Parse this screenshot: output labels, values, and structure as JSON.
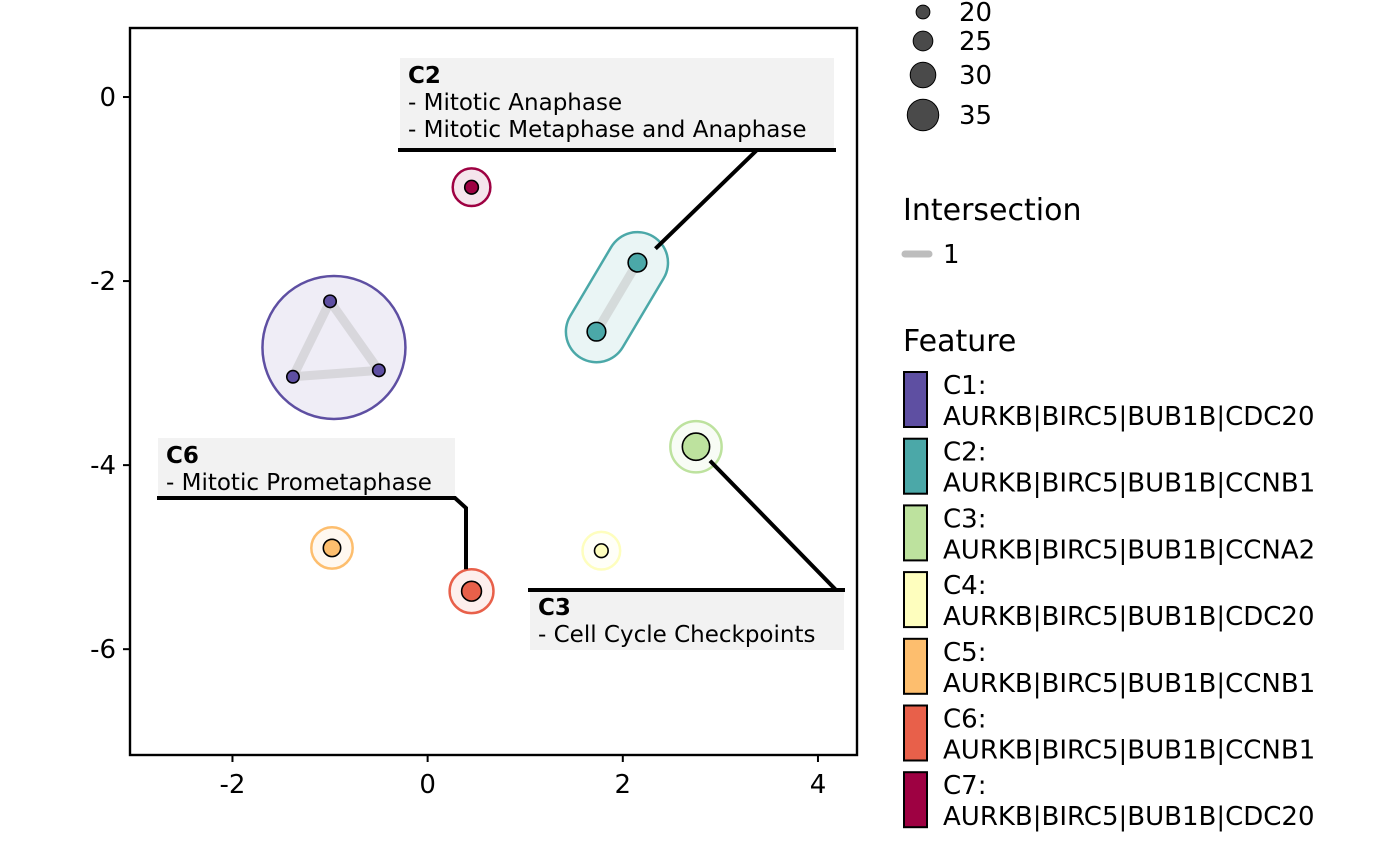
{
  "chart_data": {
    "type": "scatter",
    "xlim": [
      -3.05,
      4.4
    ],
    "ylim": [
      -7.15,
      0.75
    ],
    "x_ticks": [
      -2,
      0,
      2,
      4
    ],
    "y_ticks": [
      0,
      -2,
      -4,
      -6
    ],
    "x_tick_labels": [
      "-2",
      "0",
      "2",
      "4"
    ],
    "y_tick_labels": [
      "0",
      "-2",
      "-4",
      "-6"
    ],
    "grid": false,
    "nodes": [
      {
        "cluster": "C1",
        "x": -1.0,
        "y": -2.22,
        "size": 20
      },
      {
        "cluster": "C1",
        "x": -1.38,
        "y": -3.04,
        "size": 20
      },
      {
        "cluster": "C1",
        "x": -0.5,
        "y": -2.97,
        "size": 20
      },
      {
        "cluster": "C2",
        "x": 2.15,
        "y": -1.8,
        "size": 25
      },
      {
        "cluster": "C2",
        "x": 1.73,
        "y": -2.55,
        "size": 25
      },
      {
        "cluster": "C3",
        "x": 2.75,
        "y": -3.8,
        "size": 32
      },
      {
        "cluster": "C4",
        "x": 1.78,
        "y": -4.93,
        "size": 21
      },
      {
        "cluster": "C5",
        "x": -0.98,
        "y": -4.9,
        "size": 24
      },
      {
        "cluster": "C6",
        "x": 0.45,
        "y": -5.37,
        "size": 26
      },
      {
        "cluster": "C7",
        "x": 0.45,
        "y": -0.98,
        "size": 21
      }
    ],
    "edges": [
      {
        "cluster": "C1",
        "from": 0,
        "to": 1,
        "intersection": 1
      },
      {
        "cluster": "C1",
        "from": 0,
        "to": 2,
        "intersection": 1
      },
      {
        "cluster": "C1",
        "from": 1,
        "to": 2,
        "intersection": 1
      },
      {
        "cluster": "C2",
        "from": 3,
        "to": 4,
        "intersection": 1
      }
    ],
    "annotations": [
      {
        "cluster": "C2",
        "title": "C2",
        "lines": [
          "- Mitotic Anaphase",
          "- Mitotic Metaphase and Anaphase"
        ]
      },
      {
        "cluster": "C6",
        "title": "C6",
        "lines": [
          "- Mitotic Prometaphase"
        ]
      },
      {
        "cluster": "C3",
        "title": "C3",
        "lines": [
          "- Cell Cycle Checkpoints"
        ]
      }
    ],
    "legend_size": {
      "values": [
        20,
        25,
        30,
        35
      ],
      "labels": [
        "20",
        "25",
        "30",
        "35"
      ]
    },
    "legend_intersection": {
      "title": "Intersection",
      "labels": [
        "1"
      ]
    },
    "legend_feature": {
      "title": "Feature",
      "items": [
        {
          "key": "C1:",
          "genes": "AURKB|BIRC5|BUB1B|CDC20",
          "color": "#5E4FA2"
        },
        {
          "key": "C2:",
          "genes": "AURKB|BIRC5|BUB1B|CCNB1",
          "color": "#4BA8A8"
        },
        {
          "key": "C3:",
          "genes": "AURKB|BIRC5|BUB1B|CCNA2",
          "color": "#BDE29E"
        },
        {
          "key": "C4:",
          "genes": "AURKB|BIRC5|BUB1B|CDC20",
          "color": "#FEFEBE"
        },
        {
          "key": "C5:",
          "genes": "AURKB|BIRC5|BUB1B|CCNB1",
          "color": "#FDBE6E"
        },
        {
          "key": "C6:",
          "genes": "AURKB|BIRC5|BUB1B|CCNB1",
          "color": "#E8604A"
        },
        {
          "key": "C7:",
          "genes": "AURKB|BIRC5|BUB1B|CDC20",
          "color": "#9E0142"
        }
      ]
    },
    "colors": {
      "node_fill_dark": "#4a4a4a",
      "edge": "#bdbdbd",
      "label_bg": "#f2f2f2"
    }
  }
}
